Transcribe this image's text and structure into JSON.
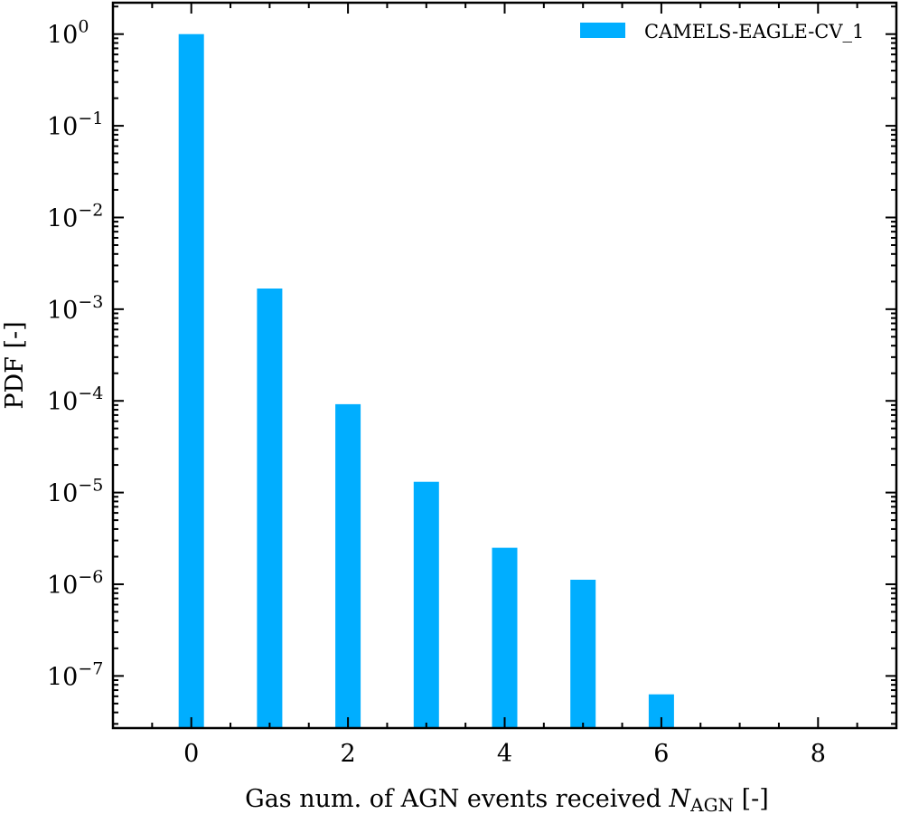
{
  "chart_data": {
    "type": "bar",
    "x": [
      0,
      1,
      2,
      3,
      4,
      5,
      6
    ],
    "values": [
      1.0,
      0.00168,
      9.2e-05,
      1.31e-05,
      2.5e-06,
      1.12e-06,
      6.3e-08
    ],
    "xlim": [
      -1,
      9
    ],
    "ylim": [
      2.7e-08,
      2.2
    ],
    "yscale": "log",
    "xticks": [
      0,
      2,
      4,
      6,
      8
    ],
    "xtick_labels": [
      "0",
      "2",
      "4",
      "6",
      "8"
    ],
    "yticks": [
      1,
      0.1,
      0.01,
      0.001,
      0.0001,
      1e-05,
      1e-06,
      1e-07
    ],
    "ytick_labels": [
      {
        "base": "10",
        "exp": "0"
      },
      {
        "base": "10",
        "exp": "−1"
      },
      {
        "base": "10",
        "exp": "−2"
      },
      {
        "base": "10",
        "exp": "−3"
      },
      {
        "base": "10",
        "exp": "−4"
      },
      {
        "base": "10",
        "exp": "−5"
      },
      {
        "base": "10",
        "exp": "−6"
      },
      {
        "base": "10",
        "exp": "−7"
      }
    ],
    "xlabel": {
      "prefix": "Gas num. of AGN events received ",
      "symbol": "N",
      "subscript": "AGN",
      "suffix": " [-]"
    },
    "ylabel": "PDF [-]",
    "legend": {
      "position": "top-right",
      "entries": [
        "CAMELS-EAGLE-CV_1"
      ]
    },
    "color": "#00aeff",
    "grid": false
  }
}
